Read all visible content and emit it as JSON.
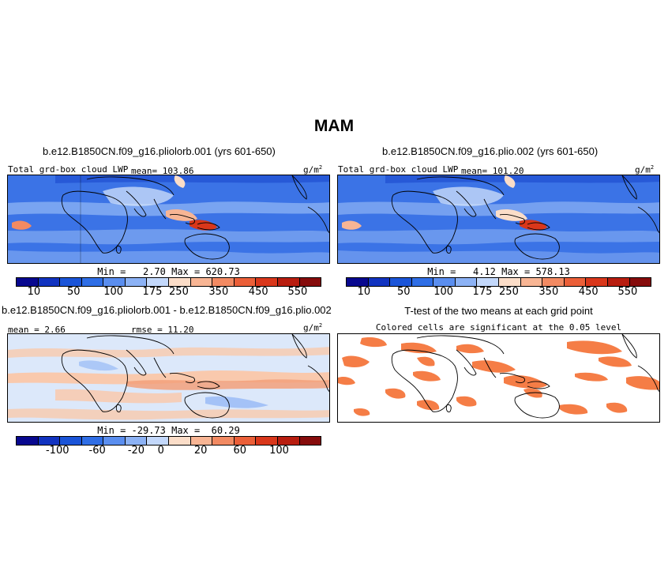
{
  "title": "MAM",
  "panels": {
    "p1": {
      "title": "b.e12.B1850CN.f09_g16.pliolorb.001 (yrs 601-650)",
      "left_label": "Total grd-box cloud LWP",
      "mean_label": "mean= 103.86",
      "units": "g/m",
      "units_sup": "2",
      "minmax": "Min =   2.70 Max = 620.73"
    },
    "p2": {
      "title": "b.e12.B1850CN.f09_g16.plio.002 (yrs 601-650)",
      "left_label": "Total grd-box cloud LWP",
      "mean_label": "mean= 101.20",
      "units": "g/m",
      "units_sup": "2",
      "minmax": "Min =   4.12 Max = 578.13"
    },
    "p3": {
      "title": "b.e12.B1850CN.f09_g16.pliolorb.001 - b.e12.B1850CN.f09_g16.plio.002",
      "mean_label": "mean =  2.66",
      "rmse_label": "rmse =  11.20",
      "units": "g/m",
      "units_sup": "2",
      "minmax": "Min = -29.73 Max =  60.29"
    },
    "p4": {
      "title": "T-test of the two means at each grid point",
      "subtitle": "Colored cells are significant at the 0.05 level"
    }
  },
  "colorbars": {
    "abs": {
      "colors": [
        "#08088f",
        "#1133c0",
        "#1a54d8",
        "#2f6ee6",
        "#5a8eef",
        "#8cb2f5",
        "#c3d8fb",
        "#fbddc8",
        "#f8b594",
        "#f28a62",
        "#eb5f38",
        "#d9371b",
        "#b81d0f",
        "#860c0c"
      ],
      "ticks": [
        "10",
        "50",
        "100",
        "175",
        "250",
        "350",
        "450",
        "550"
      ]
    },
    "diff": {
      "colors": [
        "#08088f",
        "#1133c0",
        "#1a54d8",
        "#2f6ee6",
        "#5a8eef",
        "#8cb2f5",
        "#c3d8fb",
        "#fbddc8",
        "#f8b594",
        "#f28a62",
        "#eb5f38",
        "#d9371b",
        "#b81d0f",
        "#860c0c"
      ],
      "ticks": [
        "-100",
        "-60",
        "-20",
        "0",
        "20",
        "60",
        "100"
      ]
    }
  },
  "map_colors": {
    "bg_blue": "#3b73e6",
    "light_blue": "#8fb4f4",
    "dark_blue": "#1f4fd0",
    "pale": "#dde9fb",
    "diff_bg": "#dce8fa",
    "diff_pos": "#f9c9ad",
    "diff_pos2": "#f3a07a",
    "sig": "#f57d46"
  }
}
